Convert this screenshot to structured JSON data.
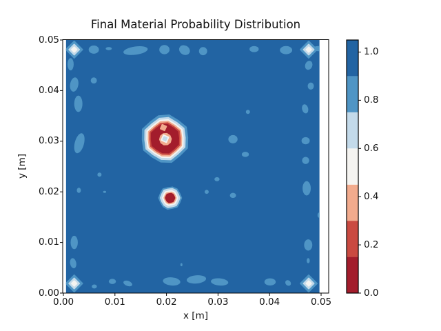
{
  "chart_data": {
    "type": "filled_contour",
    "title": "Final Material Probability Distribution",
    "x_axis": {
      "label": "x [m]",
      "tick_values": [
        0.0,
        0.01,
        0.02,
        0.03,
        0.04,
        0.05
      ],
      "tick_labels": [
        "0.00",
        "0.01",
        "0.02",
        "0.03",
        "0.04",
        "0.05"
      ],
      "lim": [
        0.0,
        0.05
      ]
    },
    "y_axis": {
      "label": "y [m]",
      "tick_values": [
        0.0,
        0.01,
        0.02,
        0.03,
        0.04,
        0.05
      ],
      "tick_labels": [
        "0.00",
        "0.01",
        "0.02",
        "0.03",
        "0.04",
        "0.05"
      ],
      "lim": [
        0.0,
        0.05
      ]
    },
    "colorbar": {
      "vmin": 0.0,
      "vmax": 1.05,
      "levels": [
        0.0,
        0.15,
        0.3,
        0.45,
        0.6,
        0.75,
        0.9,
        1.05
      ],
      "band_colors_low_to_high": [
        "#a31d2c",
        "#ca4a41",
        "#f2ab8d",
        "#f5f4f1",
        "#c3daea",
        "#4f95c5",
        "#2264a3"
      ],
      "tick_values": [
        0.0,
        0.2,
        0.4,
        0.6,
        0.8,
        1.0
      ],
      "tick_labels": [
        "0.0",
        "0.2",
        "0.4",
        "0.6",
        "0.8",
        "1.0"
      ]
    },
    "field": {
      "background_band": "0.90-1.05 (dark blue, probability ~1.0)",
      "fill_extent_x": [
        0.0005,
        0.0497
      ],
      "fill_extent_y": [
        0.0,
        0.05
      ]
    },
    "blobs": [
      {
        "name": "primary-low-probability-blob",
        "center": [
          0.0197,
          0.0305
        ],
        "rot": 0.4,
        "rings": [
          {
            "c": 5,
            "r": 0.0045
          },
          {
            "c": 4,
            "r": 0.004
          },
          {
            "c": 3,
            "r": 0.0036
          },
          {
            "c": 2,
            "r": 0.0033
          },
          {
            "c": 1,
            "r": 0.003
          },
          {
            "c": 0,
            "r": 0.0027
          }
        ],
        "core": [
          {
            "c": 2,
            "r": 0.0011,
            "dx": 0.0001,
            "dy": -0.0001,
            "n": 10
          },
          {
            "c": 3,
            "r": 0.00075,
            "n": 4
          },
          {
            "c": 4,
            "r": 0.0004,
            "n": 4
          },
          {
            "c": 2,
            "r": 0.0006,
            "dx": -0.0003,
            "dy": 0.0022,
            "n": 4
          }
        ]
      },
      {
        "name": "secondary-low-probability-blob",
        "center": [
          0.0207,
          0.0188
        ],
        "rot": 0.9,
        "rings": [
          {
            "c": 5,
            "r": 0.0021
          },
          {
            "c": 4,
            "r": 0.0018
          },
          {
            "c": 3,
            "r": 0.0014
          },
          {
            "c": 2,
            "r": 0.0011
          },
          {
            "c": 0,
            "r": 0.00085
          }
        ],
        "core": []
      }
    ],
    "corner_markers": {
      "positions": [
        [
          0.0021,
          0.0481
        ],
        [
          0.0476,
          0.0481
        ],
        [
          0.0021,
          0.0019
        ],
        [
          0.0476,
          0.0019
        ]
      ],
      "rings": [
        {
          "c": 5,
          "r": 0.0016,
          "n": 4
        },
        {
          "c": 4,
          "r": 0.001,
          "n": 4
        },
        {
          "c": 3,
          "r": 0.00048,
          "n": 4
        }
      ]
    },
    "speckle_format": "[x, y, rx, ry, rotation_deg] regions in 0.75-0.90 band (medium blue)",
    "speckles": [
      [
        0.0088,
        0.0483,
        0.0006,
        0.0003,
        0
      ],
      [
        0.014,
        0.0479,
        0.0024,
        0.0008,
        -8
      ],
      [
        0.0196,
        0.0481,
        0.001,
        0.0009,
        0
      ],
      [
        0.0235,
        0.048,
        0.0011,
        0.0009,
        30
      ],
      [
        0.0271,
        0.0478,
        0.0008,
        0.0008,
        45
      ],
      [
        0.037,
        0.0482,
        0.0009,
        0.0006,
        0
      ],
      [
        0.0432,
        0.048,
        0.0012,
        0.0008,
        0
      ],
      [
        0.0495,
        0.0483,
        0.0012,
        0.0005,
        0
      ],
      [
        0.0059,
        0.0481,
        0.001,
        0.0008,
        0
      ],
      [
        0.0014,
        0.0452,
        0.0006,
        0.0012,
        0
      ],
      [
        0.0021,
        0.0412,
        0.0008,
        0.0014,
        10
      ],
      [
        0.0029,
        0.0374,
        0.0008,
        0.0016,
        0
      ],
      [
        0.0031,
        0.0296,
        0.0009,
        0.002,
        15
      ],
      [
        0.003,
        0.0203,
        0.0004,
        0.0005,
        0
      ],
      [
        0.0021,
        0.01,
        0.0007,
        0.0013,
        0
      ],
      [
        0.0019,
        0.0059,
        0.0006,
        0.001,
        -10
      ],
      [
        0.0095,
        0.0023,
        0.0007,
        0.0005,
        0
      ],
      [
        0.0125,
        0.0019,
        0.0009,
        0.0005,
        20
      ],
      [
        0.021,
        0.0023,
        0.0017,
        0.0008,
        5
      ],
      [
        0.0258,
        0.0027,
        0.0019,
        0.0008,
        -5
      ],
      [
        0.0303,
        0.0022,
        0.0017,
        0.0007,
        5
      ],
      [
        0.0401,
        0.0022,
        0.0011,
        0.0007,
        0
      ],
      [
        0.0436,
        0.002,
        0.0006,
        0.0005,
        45
      ],
      [
        0.0229,
        0.0056,
        0.0002,
        0.0003,
        0
      ],
      [
        0.006,
        0.0013,
        0.0005,
        0.0004,
        0
      ],
      [
        0.0476,
        0.045,
        0.0007,
        0.0009,
        20
      ],
      [
        0.048,
        0.0409,
        0.0006,
        0.0007,
        0
      ],
      [
        0.0469,
        0.0364,
        0.0006,
        0.0009,
        -15
      ],
      [
        0.047,
        0.0301,
        0.0008,
        0.0007,
        0
      ],
      [
        0.047,
        0.0262,
        0.0007,
        0.0007,
        0
      ],
      [
        0.0472,
        0.0207,
        0.0008,
        0.0014,
        0
      ],
      [
        0.0496,
        0.0154,
        0.0003,
        0.0005,
        0
      ],
      [
        0.0475,
        0.0095,
        0.0008,
        0.0011,
        0
      ],
      [
        0.0475,
        0.0064,
        0.0003,
        0.0005,
        0
      ],
      [
        0.0329,
        0.0304,
        0.0009,
        0.0008,
        0
      ],
      [
        0.0353,
        0.0274,
        0.0007,
        0.0005,
        0
      ],
      [
        0.0358,
        0.0358,
        0.0004,
        0.0004,
        0
      ],
      [
        0.0298,
        0.0225,
        0.0005,
        0.0004,
        0
      ],
      [
        0.0278,
        0.02,
        0.0004,
        0.0004,
        45
      ],
      [
        0.0329,
        0.0193,
        0.0006,
        0.0005,
        0
      ],
      [
        0.007,
        0.0234,
        0.0004,
        0.0004,
        0
      ],
      [
        0.0059,
        0.042,
        0.0006,
        0.0006,
        45
      ],
      [
        0.008,
        0.02,
        0.0003,
        0.0002,
        0
      ]
    ]
  }
}
